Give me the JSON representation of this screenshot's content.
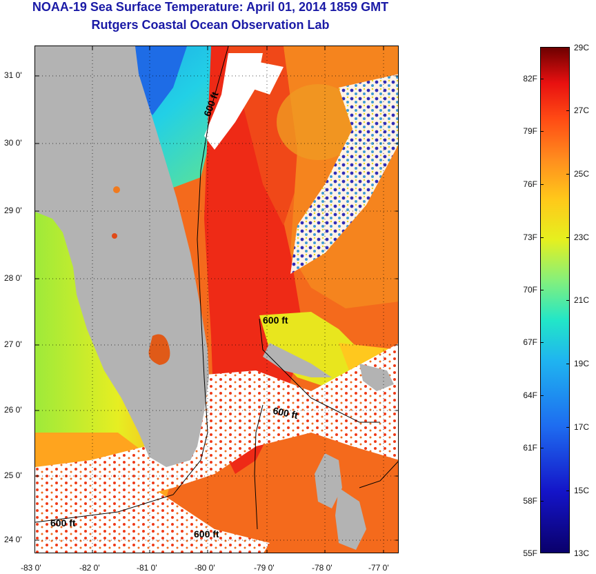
{
  "header": {
    "title": "NOAA-19 Sea Surface Temperature:  April 01, 2014 1859 GMT",
    "subtitle": "Rutgers Coastal Ocean Observation Lab"
  },
  "map": {
    "lat_labels": [
      "31 0'",
      "30 0'",
      "29 0'",
      "28 0'",
      "27 0'",
      "26 0'",
      "25 0'",
      "24 0'"
    ],
    "lon_labels": [
      "-83 0'",
      "-82 0'",
      "-81 0'",
      "-80 0'",
      "-79 0'",
      "-78 0'",
      "-77 0'"
    ],
    "contour_labels": [
      "600 ft",
      "600 ft",
      "600 ft",
      "600 ft",
      "600 ft"
    ],
    "colors": {
      "land": "#b3b3b3",
      "cloud": "#ffffff",
      "gulf_stream": "#ee2a16",
      "warm_orange": "#f46a1c",
      "shelf_yellow": "#e6ee22",
      "cool_cyan": "#2ad8e6",
      "cold_blue": "#1860e6"
    }
  },
  "colorbar": {
    "fahrenheit_labels": [
      "82F",
      "79F",
      "76F",
      "73F",
      "70F",
      "67F",
      "64F",
      "61F",
      "58F",
      "55F"
    ],
    "celsius_labels": [
      "29C",
      "27C",
      "25C",
      "23C",
      "21C",
      "19C",
      "17C",
      "15C",
      "13C"
    ]
  }
}
